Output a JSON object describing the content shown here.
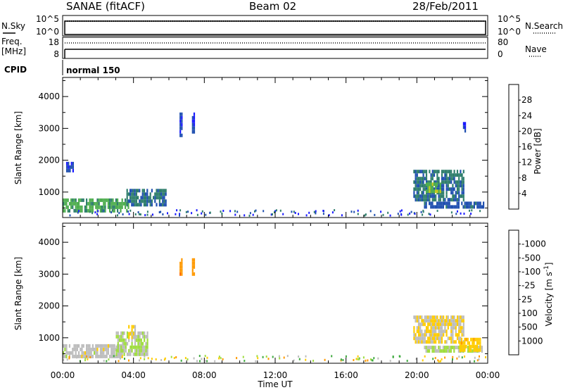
{
  "header": {
    "station": "SANAE (fitACF)",
    "beam": "Beam 02",
    "date": "28/Feb/2011"
  },
  "top_panels": {
    "nsky_label": "N.Sky",
    "nsky_ticks": [
      "10^5",
      "10^0"
    ],
    "nsearch_label": "N.Search",
    "nsearch_ticks": [
      "10^5",
      "10^0"
    ],
    "freq_label_line1": "Freq.",
    "freq_label_line2": "[MHz]",
    "freq_ticks": [
      "18",
      "8"
    ],
    "nave_label": "Nave",
    "nave_ticks": [
      "80",
      "0"
    ],
    "cpid_label": "CPID",
    "cpid_value": "normal 150"
  },
  "time_axis": {
    "label": "Time UT",
    "ticks": [
      "00:00",
      "04:00",
      "08:00",
      "12:00",
      "16:00",
      "20:00",
      "00:00"
    ]
  },
  "colors": {
    "power": [
      "#1a1aff",
      "#1f4fb0",
      "#2f7e6c",
      "#4fae4f",
      "#c8c81a",
      "#ff9a00",
      "#ff5a00",
      "#e00000"
    ],
    "velocity": [
      "#1f3fb0",
      "#2f6f7f",
      "#3faa3f",
      "#9fdd3f",
      "#bdbdbd",
      "#ffcc00",
      "#ff9900",
      "#ff6600",
      "#ee1111"
    ]
  },
  "chart_data": [
    {
      "type": "heatmap",
      "title": "",
      "xlabel": "Time UT",
      "ylabel": "Slant Range [km]",
      "xlim_hours": [
        0,
        24
      ],
      "ylim_km": [
        200,
        4600
      ],
      "y_ticks": [
        "1000",
        "2000",
        "3000",
        "4000"
      ],
      "colorbar": {
        "label": "Power [dB]",
        "ticks": [
          "4",
          "8",
          "12",
          "16",
          "20",
          "24",
          "28"
        ],
        "range": [
          0,
          30
        ]
      },
      "echo_regions": [
        {
          "t_start": 0.0,
          "t_end": 3.7,
          "r_min": 450,
          "r_max": 800,
          "typical_value": 12
        },
        {
          "t_start": 3.6,
          "t_end": 5.8,
          "r_min": 550,
          "r_max": 1100,
          "typical_value": 8
        },
        {
          "t_start": 0.2,
          "t_end": 0.6,
          "r_min": 1700,
          "r_max": 1950,
          "typical_value": 4
        },
        {
          "t_start": 6.6,
          "t_end": 6.7,
          "r_min": 2800,
          "r_max": 3500,
          "typical_value": 4
        },
        {
          "t_start": 7.3,
          "t_end": 7.4,
          "r_min": 2900,
          "r_max": 3500,
          "typical_value": 4
        },
        {
          "t_start": 19.8,
          "t_end": 22.6,
          "r_min": 800,
          "r_max": 1700,
          "typical_value": 8
        },
        {
          "t_start": 20.5,
          "t_end": 21.3,
          "r_min": 1000,
          "r_max": 1300,
          "typical_value": 14
        },
        {
          "t_start": 20.4,
          "t_end": 23.8,
          "r_min": 500,
          "r_max": 700,
          "typical_value": 6
        },
        {
          "t_start": 22.6,
          "t_end": 22.7,
          "r_min": 2900,
          "r_max": 3200,
          "typical_value": 4
        }
      ]
    },
    {
      "type": "heatmap",
      "title": "",
      "xlabel": "Time UT",
      "ylabel": "Slant Range [km]",
      "xlim_hours": [
        0,
        24
      ],
      "ylim_km": [
        200,
        4600
      ],
      "y_ticks": [
        "1000",
        "2000",
        "3000",
        "4000"
      ],
      "colorbar": {
        "label": "Velocity [m s^-1]",
        "ticks": [
          "1000",
          "500",
          "100",
          "25",
          "-25",
          "-100",
          "-500",
          "-1000"
        ],
        "range": [
          -1250,
          1250
        ]
      },
      "echo_regions": [
        {
          "t_start": 0.0,
          "t_end": 3.4,
          "r_min": 450,
          "r_max": 800,
          "typical_value": 0
        },
        {
          "t_start": 3.0,
          "t_end": 4.8,
          "r_min": 500,
          "r_max": 1200,
          "typical_value": 150
        },
        {
          "t_start": 3.7,
          "t_end": 4.1,
          "r_min": 1000,
          "r_max": 1400,
          "typical_value": -150
        },
        {
          "t_start": 6.6,
          "t_end": 6.7,
          "r_min": 3000,
          "r_max": 3500,
          "typical_value": -600
        },
        {
          "t_start": 7.3,
          "t_end": 7.4,
          "r_min": 3000,
          "r_max": 3500,
          "typical_value": -600
        },
        {
          "t_start": 19.8,
          "t_end": 22.6,
          "r_min": 900,
          "r_max": 1700,
          "typical_value": -150
        },
        {
          "t_start": 20.4,
          "t_end": 23.8,
          "r_min": 550,
          "r_max": 750,
          "typical_value": 150
        },
        {
          "t_start": 22.4,
          "t_end": 23.6,
          "r_min": 600,
          "r_max": 1000,
          "typical_value": -300
        }
      ]
    }
  ]
}
